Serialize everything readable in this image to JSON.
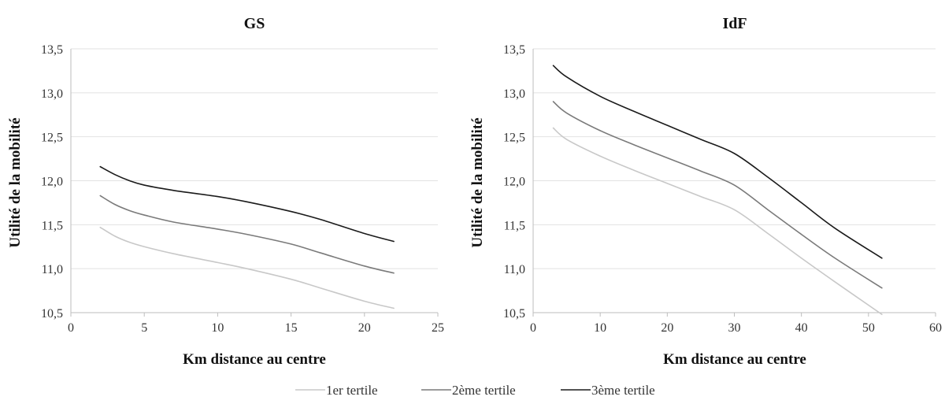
{
  "chart_data": [
    {
      "type": "line",
      "title": "GS",
      "xlabel": "Km distance au centre",
      "ylabel": "Utilité de la mobilité",
      "xlim": [
        0,
        25
      ],
      "ylim": [
        10.5,
        13.5
      ],
      "xticks": [
        0,
        5,
        10,
        15,
        20,
        25
      ],
      "xtick_labels": [
        "0",
        "5",
        "10",
        "15",
        "20",
        "25"
      ],
      "yticks": [
        10.5,
        11.0,
        11.5,
        12.0,
        12.5,
        13.0,
        13.5
      ],
      "ytick_labels": [
        "10,5",
        "11,0",
        "11,5",
        "12,0",
        "12,5",
        "13,0",
        "13,5"
      ],
      "grid": "horizontal",
      "series": [
        {
          "name": "1er tertile",
          "color": "#c8c8c8",
          "x": [
            2,
            3,
            4,
            5,
            7,
            10,
            12,
            15,
            17,
            20,
            22
          ],
          "y": [
            11.47,
            11.37,
            11.3,
            11.25,
            11.17,
            11.07,
            11.0,
            10.88,
            10.78,
            10.63,
            10.55
          ]
        },
        {
          "name": "2ème tertile",
          "color": "#7a7a7a",
          "x": [
            2,
            3,
            4,
            5,
            7,
            10,
            12,
            15,
            17,
            20,
            22
          ],
          "y": [
            11.83,
            11.73,
            11.66,
            11.61,
            11.53,
            11.45,
            11.39,
            11.28,
            11.18,
            11.03,
            10.95
          ]
        },
        {
          "name": "3ème tertile",
          "color": "#1a1a1a",
          "x": [
            2,
            3,
            4,
            5,
            7,
            10,
            12,
            15,
            17,
            20,
            22
          ],
          "y": [
            12.16,
            12.07,
            12.0,
            11.95,
            11.89,
            11.82,
            11.76,
            11.65,
            11.56,
            11.4,
            11.31
          ]
        }
      ]
    },
    {
      "type": "line",
      "title": "IdF",
      "xlabel": "Km distance au centre",
      "ylabel": "Utilité de la mobilité",
      "xlim": [
        0,
        60
      ],
      "ylim": [
        10.5,
        13.5
      ],
      "xticks": [
        0,
        10,
        20,
        30,
        40,
        50,
        60
      ],
      "xtick_labels": [
        "0",
        "10",
        "20",
        "30",
        "40",
        "50",
        "60"
      ],
      "yticks": [
        10.5,
        11.0,
        11.5,
        12.0,
        12.5,
        13.0,
        13.5
      ],
      "ytick_labels": [
        "10,5",
        "11,0",
        "11,5",
        "12,0",
        "12,5",
        "13,0",
        "13,5"
      ],
      "grid": "horizontal",
      "series": [
        {
          "name": "1er tertile",
          "color": "#c8c8c8",
          "x": [
            3,
            5,
            10,
            15,
            20,
            25,
            30,
            35,
            40,
            45,
            52
          ],
          "y": [
            12.6,
            12.47,
            12.28,
            12.12,
            11.97,
            11.82,
            11.67,
            11.4,
            11.12,
            10.85,
            10.48
          ]
        },
        {
          "name": "2ème tertile",
          "color": "#7a7a7a",
          "x": [
            3,
            5,
            10,
            15,
            20,
            25,
            30,
            35,
            40,
            45,
            52
          ],
          "y": [
            12.9,
            12.77,
            12.57,
            12.41,
            12.26,
            12.11,
            11.95,
            11.67,
            11.39,
            11.12,
            10.78
          ]
        },
        {
          "name": "3ème tertile",
          "color": "#1a1a1a",
          "x": [
            3,
            5,
            10,
            15,
            20,
            25,
            30,
            35,
            40,
            45,
            52
          ],
          "y": [
            13.31,
            13.18,
            12.96,
            12.79,
            12.63,
            12.47,
            12.31,
            12.04,
            11.75,
            11.46,
            11.12
          ]
        }
      ]
    }
  ],
  "legend": {
    "items": [
      {
        "label": "1er tertile",
        "color": "#c8c8c8"
      },
      {
        "label": "2ème tertile",
        "color": "#7a7a7a"
      },
      {
        "label": "3ème tertile",
        "color": "#1a1a1a"
      }
    ]
  }
}
